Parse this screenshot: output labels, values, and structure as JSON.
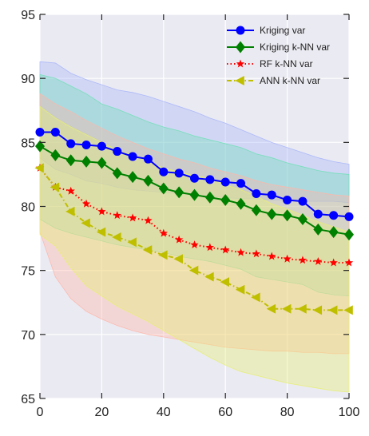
{
  "chart_data": {
    "type": "line",
    "title": "",
    "xlabel": "",
    "ylabel": "",
    "xlim": [
      0,
      100
    ],
    "ylim": [
      65,
      95
    ],
    "x_ticks": [
      0,
      20,
      40,
      60,
      80,
      100
    ],
    "y_ticks": [
      65,
      70,
      75,
      80,
      85,
      90,
      95
    ],
    "grid": true,
    "legend_position": "top-right",
    "background": "#eaeaf2",
    "series": [
      {
        "name": "Kriging var",
        "color": "#0000ff",
        "marker": "circle",
        "line": "solid",
        "x": [
          0,
          5,
          10,
          15,
          20,
          25,
          30,
          35,
          40,
          45,
          50,
          55,
          60,
          65,
          70,
          75,
          80,
          85,
          90,
          95,
          100
        ],
        "y": [
          85.8,
          85.8,
          84.9,
          84.8,
          84.7,
          84.3,
          83.9,
          83.7,
          82.7,
          82.6,
          82.2,
          82.1,
          81.9,
          81.8,
          81.0,
          80.9,
          80.5,
          80.4,
          79.4,
          79.3,
          79.2
        ],
        "band_upper": [
          91.3,
          91.2,
          90.4,
          89.9,
          89.5,
          89.1,
          88.9,
          88.6,
          88.2,
          87.8,
          87.4,
          86.9,
          86.5,
          86.0,
          85.5,
          85.0,
          84.6,
          84.2,
          83.8,
          83.5,
          83.3
        ],
        "band_lower": [
          83.8,
          82.9,
          82.5,
          82.0,
          81.8,
          81.5,
          81.3,
          81.2,
          81.1,
          81.0,
          80.9,
          80.8,
          80.7,
          80.6,
          80.6,
          80.5,
          80.5,
          80.4,
          80.4,
          80.4,
          80.3
        ],
        "band_color": "#a8b6f8"
      },
      {
        "name": "Kriging k-NN var",
        "color": "#008000",
        "marker": "diamond",
        "line": "solid",
        "x": [
          0,
          5,
          10,
          15,
          20,
          25,
          30,
          35,
          40,
          45,
          50,
          55,
          60,
          65,
          70,
          75,
          80,
          85,
          90,
          95,
          100
        ],
        "y": [
          84.7,
          84.0,
          83.6,
          83.5,
          83.4,
          82.6,
          82.3,
          82.0,
          81.4,
          81.1,
          80.9,
          80.7,
          80.5,
          80.2,
          79.7,
          79.4,
          79.3,
          79.0,
          78.2,
          78.0,
          77.8
        ],
        "band_upper": [
          90.3,
          90.0,
          89.4,
          88.8,
          88.0,
          87.6,
          87.1,
          86.6,
          86.2,
          85.9,
          85.5,
          85.2,
          84.9,
          84.6,
          84.1,
          83.8,
          83.4,
          83.1,
          82.8,
          82.6,
          82.5
        ],
        "band_lower": [
          79.0,
          78.3,
          77.9,
          77.6,
          77.3,
          77.0,
          76.8,
          76.6,
          76.4,
          76.1,
          75.9,
          75.7,
          75.4,
          75.1,
          74.5,
          74.3,
          74.1,
          73.9,
          73.3,
          73.1,
          73.0
        ],
        "band_color": "#70e0b8"
      },
      {
        "name": "RF k-NN var",
        "color": "#ff0000",
        "marker": "star",
        "line": "dotted",
        "x": [
          0,
          5,
          10,
          15,
          20,
          25,
          30,
          35,
          40,
          45,
          50,
          55,
          60,
          65,
          70,
          75,
          80,
          85,
          90,
          95,
          100
        ],
        "y": [
          83.0,
          81.5,
          81.2,
          80.2,
          79.6,
          79.3,
          79.1,
          78.9,
          77.9,
          77.4,
          77.0,
          76.8,
          76.6,
          76.4,
          76.3,
          76.1,
          75.9,
          75.8,
          75.7,
          75.6,
          75.6
        ],
        "band_upper": [
          88.8,
          88.0,
          87.4,
          86.7,
          86.1,
          85.5,
          85.0,
          84.5,
          84.1,
          83.7,
          83.4,
          83.0,
          82.7,
          82.4,
          82.0,
          81.7,
          81.5,
          81.3,
          81.1,
          80.9,
          80.8
        ],
        "band_lower": [
          78.0,
          74.5,
          72.8,
          71.8,
          71.2,
          70.7,
          70.3,
          70.0,
          69.8,
          69.6,
          69.4,
          69.2,
          69.0,
          68.9,
          68.8,
          68.7,
          68.7,
          68.6,
          68.6,
          68.5,
          68.5
        ],
        "band_color": "#ffb6a8"
      },
      {
        "name": "ANN k-NN var",
        "color": "#bfbf00",
        "marker": "triangle-left",
        "line": "dashdot",
        "x": [
          0,
          5,
          10,
          15,
          20,
          25,
          30,
          35,
          40,
          45,
          50,
          55,
          60,
          65,
          70,
          75,
          80,
          85,
          90,
          95,
          100
        ],
        "y": [
          83.0,
          81.5,
          79.6,
          78.7,
          78.0,
          77.6,
          77.2,
          76.6,
          76.2,
          75.9,
          75.0,
          74.5,
          74.1,
          73.5,
          72.9,
          72.0,
          72.0,
          72.0,
          71.9,
          71.9,
          71.9
        ],
        "band_upper": [
          87.8,
          86.9,
          86.2,
          85.6,
          85.0,
          84.4,
          84.0,
          83.5,
          83.0,
          82.7,
          82.4,
          82.2,
          81.7,
          81.3,
          80.8,
          80.2,
          79.8,
          79.3,
          78.8,
          78.4,
          78.0
        ],
        "band_lower": [
          77.8,
          76.9,
          75.2,
          73.8,
          73.0,
          72.2,
          71.6,
          71.0,
          70.3,
          69.6,
          68.9,
          68.2,
          67.6,
          67.1,
          66.8,
          66.5,
          66.2,
          66.0,
          65.8,
          65.6,
          65.5
        ],
        "band_color": "#e8f070"
      }
    ]
  }
}
